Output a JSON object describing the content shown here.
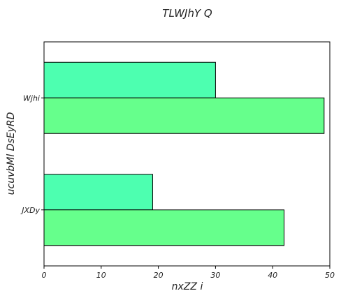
{
  "chart_data": {
    "type": "bar",
    "orientation": "horizontal",
    "title": "TLWJhY Q",
    "xlabel": "nxZZ  i",
    "ylabel": "ucuvbMl DsEyRD",
    "categories": [
      "Wjhi",
      "JXDy"
    ],
    "series": [
      {
        "values": [
          30,
          19
        ],
        "color": "#4dffb0"
      },
      {
        "values": [
          49,
          42
        ],
        "color": "#66ff8c"
      }
    ],
    "xlim": [
      0,
      50
    ],
    "xticks": [
      0,
      10,
      20,
      30,
      40,
      50
    ],
    "grid": false,
    "legend": "none"
  }
}
